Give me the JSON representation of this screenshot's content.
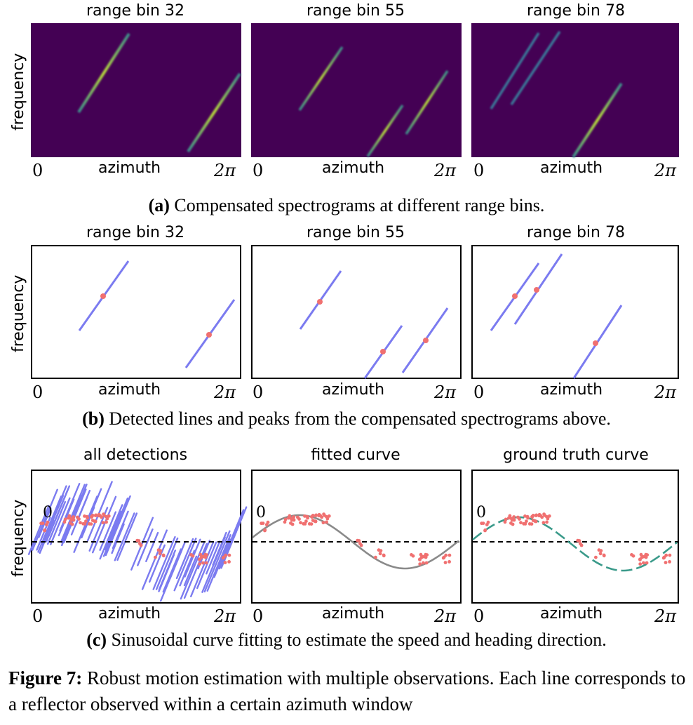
{
  "row_a": {
    "titles": [
      "range bin 32",
      "range bin 55",
      "range bin 78"
    ],
    "ylabel": "frequency",
    "xlabel": "azimuth",
    "xtick_start": "0",
    "xtick_end": "2π",
    "caption_label": "(a)",
    "caption_text": " Compensated spectrograms at different range bins."
  },
  "row_b": {
    "titles": [
      "range bin 32",
      "range bin 55",
      "range bin 78"
    ],
    "ylabel": "frequency",
    "xlabel": "azimuth",
    "xtick_start": "0",
    "xtick_end": "2π",
    "caption_label": "(b)",
    "caption_text": " Detected lines and peaks from the compensated spectrograms above."
  },
  "row_c": {
    "titles": [
      "all detections",
      "fitted curve",
      "ground truth curve"
    ],
    "ylabel": "frequency",
    "xlabel": "azimuth",
    "xtick_start": "0",
    "xtick_end": "2π",
    "zero_label": "0",
    "caption_label": "(c)",
    "caption_text": " Sinusoidal curve fitting to estimate the speed and heading direction."
  },
  "figure_caption": {
    "label": "Figure 7:",
    "text": " Robust motion estimation with multiple observations. Each line corresponds to a reflector observed within a certain azimuth window"
  },
  "colors": {
    "spectrogram_bg": "#440154",
    "line": "#7b7bf0",
    "peak": "#f07070",
    "fitted": "#8a8a8a",
    "ground_truth": "#3a9a8a"
  }
}
